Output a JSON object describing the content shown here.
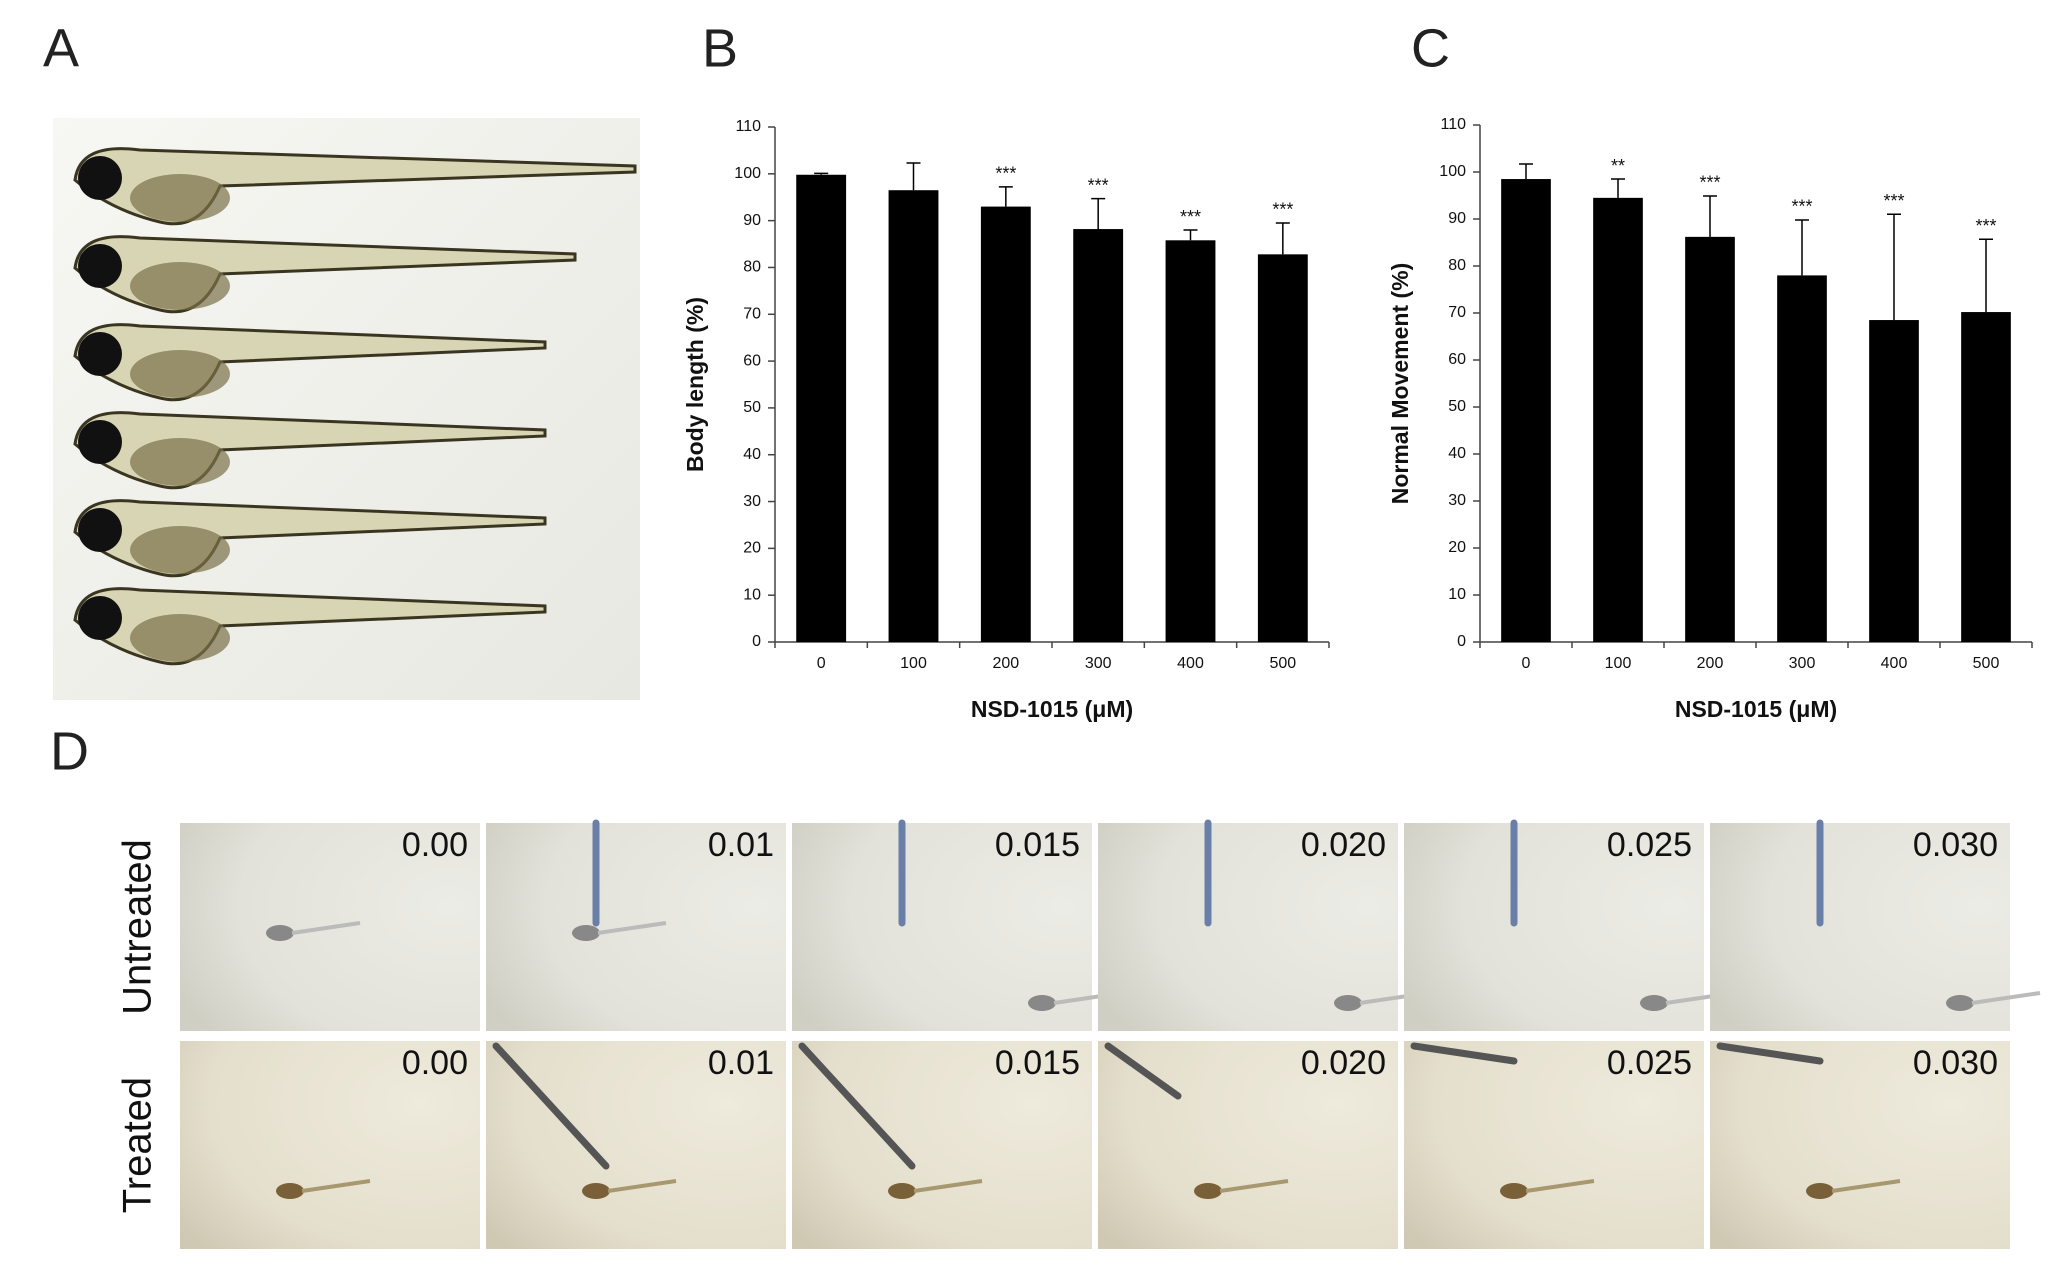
{
  "panel_labels": [
    "A",
    "B",
    "C",
    "D"
  ],
  "chart_data": [
    {
      "type": "bar",
      "categories": [
        "0",
        "100",
        "200",
        "300",
        "400",
        "500"
      ],
      "values": [
        99.8,
        96.5,
        93,
        88.2,
        85.8,
        82.8
      ],
      "errors": [
        0.3,
        5.8,
        4.2,
        6.5,
        2.2,
        6.7
      ],
      "significance": [
        null,
        null,
        "***",
        "***",
        "***",
        "***"
      ],
      "color": "#000000",
      "xlabel": "NSD-1015 (μM)",
      "ylabel": "Body length  (%)",
      "ylim": [
        0,
        110
      ],
      "yticks": [
        0,
        10,
        20,
        30,
        40,
        50,
        60,
        70,
        80,
        90,
        100,
        110
      ]
    },
    {
      "type": "bar",
      "categories": [
        "0",
        "100",
        "200",
        "300",
        "400",
        "500"
      ],
      "values": [
        98.5,
        94.5,
        86.2,
        78,
        68.5,
        70.2
      ],
      "errors": [
        3.2,
        4,
        8.7,
        11.8,
        22.5,
        15.5
      ],
      "significance": [
        null,
        "**",
        "***",
        "***",
        "***",
        "***"
      ],
      "color": "#000000",
      "xlabel": "NSD-1015 (μM)",
      "ylabel": "Normal Movement  (%)",
      "ylim": [
        0,
        110
      ],
      "yticks": [
        0,
        10,
        20,
        30,
        40,
        50,
        60,
        70,
        80,
        90,
        100,
        110
      ]
    }
  ],
  "timelapse": {
    "rows": [
      "Untreated",
      "Treated"
    ],
    "times": [
      "0.00",
      "0.01",
      "0.015",
      "0.020",
      "0.025",
      "0.030"
    ]
  }
}
